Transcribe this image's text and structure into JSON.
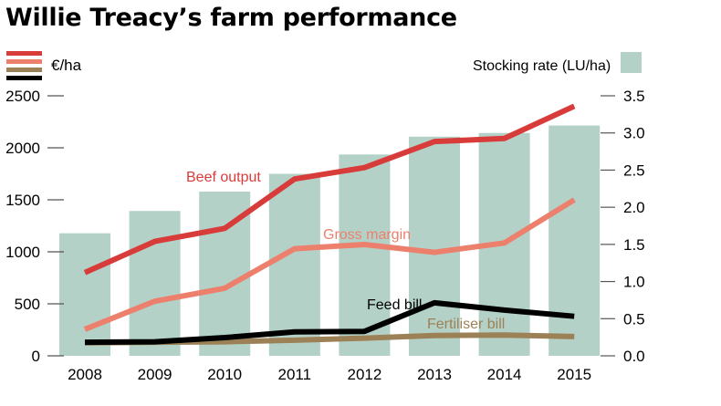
{
  "title": "Willie Treacy’s farm performance",
  "legend": {
    "left_unit": "€/ha",
    "right_unit": "Stocking rate (LU/ha)"
  },
  "colors": {
    "beef_output": "#d83c3a",
    "gross_margin": "#ec806c",
    "fertiliser_bill": "#9c8156",
    "feed_bill": "#000000",
    "stocking_rate": "#b4d1c8"
  },
  "chart_data": {
    "type": "bar+line",
    "title": "Willie Treacy’s farm performance",
    "categories": [
      "2008",
      "2009",
      "2010",
      "2011",
      "2012",
      "2013",
      "2014",
      "2015"
    ],
    "y_left": {
      "label": "€/ha",
      "range": [
        0,
        2500
      ],
      "ticks": [
        0,
        500,
        1000,
        1500,
        2000,
        2500
      ]
    },
    "y_right": {
      "label": "Stocking rate (LU/ha)",
      "range": [
        0,
        3.5
      ],
      "ticks": [
        "0.0",
        "0.5",
        "1.0",
        "1.5",
        "2.0",
        "2.5",
        "3.0",
        "3.5"
      ]
    },
    "bars": {
      "name": "Stocking rate (LU/ha)",
      "axis": "right",
      "values": [
        1.65,
        1.95,
        2.21,
        2.45,
        2.71,
        2.95,
        3.0,
        3.1
      ]
    },
    "series": [
      {
        "name": "Beef output",
        "key": "beef_output",
        "axis": "left",
        "values": [
          800,
          1100,
          1225,
          1700,
          1810,
          2060,
          2090,
          2400
        ]
      },
      {
        "name": "Gross margin",
        "key": "gross_margin",
        "axis": "left",
        "values": [
          255,
          525,
          650,
          1030,
          1070,
          995,
          1085,
          1500
        ]
      },
      {
        "name": "Feed bill",
        "key": "feed_bill",
        "axis": "left",
        "values": [
          130,
          135,
          175,
          230,
          235,
          510,
          440,
          380
        ]
      },
      {
        "name": "Fertiliser bill",
        "key": "fertiliser_bill",
        "axis": "left",
        "values": [
          125,
          130,
          135,
          150,
          170,
          195,
          200,
          185
        ]
      }
    ],
    "annotations": [
      "Beef output",
      "Gross margin",
      "Feed bill",
      "Fertiliser bill"
    ],
    "grid": false,
    "legend_position": "top"
  }
}
